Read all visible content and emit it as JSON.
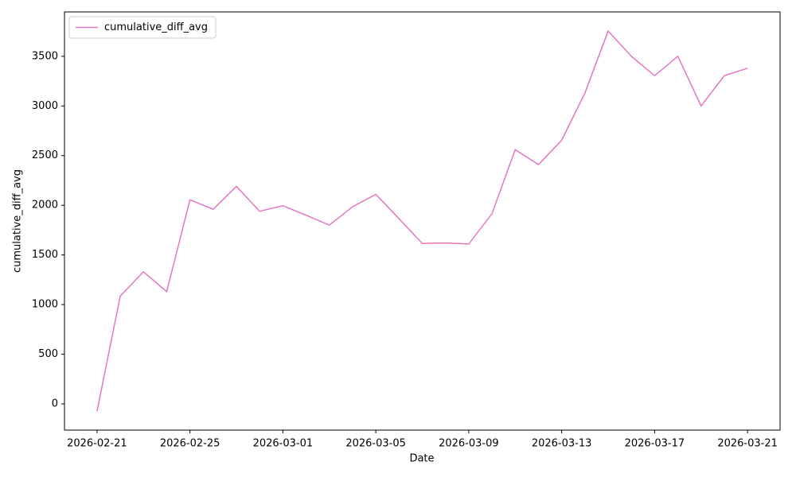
{
  "chart_data": {
    "type": "line",
    "x_label": "Date",
    "y_label": "cumulative_diff_avg",
    "x": [
      "2026-02-21",
      "2026-02-22",
      "2026-02-23",
      "2026-02-24",
      "2026-02-25",
      "2026-02-26",
      "2026-02-27",
      "2026-02-28",
      "2026-03-01",
      "2026-03-02",
      "2026-03-03",
      "2026-03-04",
      "2026-03-05",
      "2026-03-06",
      "2026-03-07",
      "2026-03-08",
      "2026-03-09",
      "2026-03-10",
      "2026-03-11",
      "2026-03-12",
      "2026-03-13",
      "2026-03-14",
      "2026-03-15",
      "2026-03-16",
      "2026-03-17",
      "2026-03-18",
      "2026-03-19",
      "2026-03-20",
      "2026-03-21"
    ],
    "series": [
      {
        "name": "cumulative_diff_avg",
        "color": "#e377c2",
        "values": [
          -75,
          1085,
          1330,
          1130,
          2055,
          1960,
          2190,
          1940,
          1995,
          1900,
          1800,
          1985,
          2110,
          1865,
          1615,
          1620,
          1610,
          1915,
          2560,
          2410,
          2655,
          3130,
          3755,
          3500,
          3305,
          3500,
          3000,
          3305,
          3380
        ]
      }
    ],
    "xlim": [
      "2026-02-19T14:24",
      "2026-03-22T09:36"
    ],
    "xticks": [
      "2026-02-21",
      "2026-02-25",
      "2026-03-01",
      "2026-03-05",
      "2026-03-09",
      "2026-03-13",
      "2026-03-17",
      "2026-03-21"
    ],
    "ylim": [
      -264,
      3947
    ],
    "yticks": [
      0,
      500,
      1000,
      1500,
      2000,
      2500,
      3000,
      3500
    ],
    "grid": false,
    "legend": "upper left"
  }
}
